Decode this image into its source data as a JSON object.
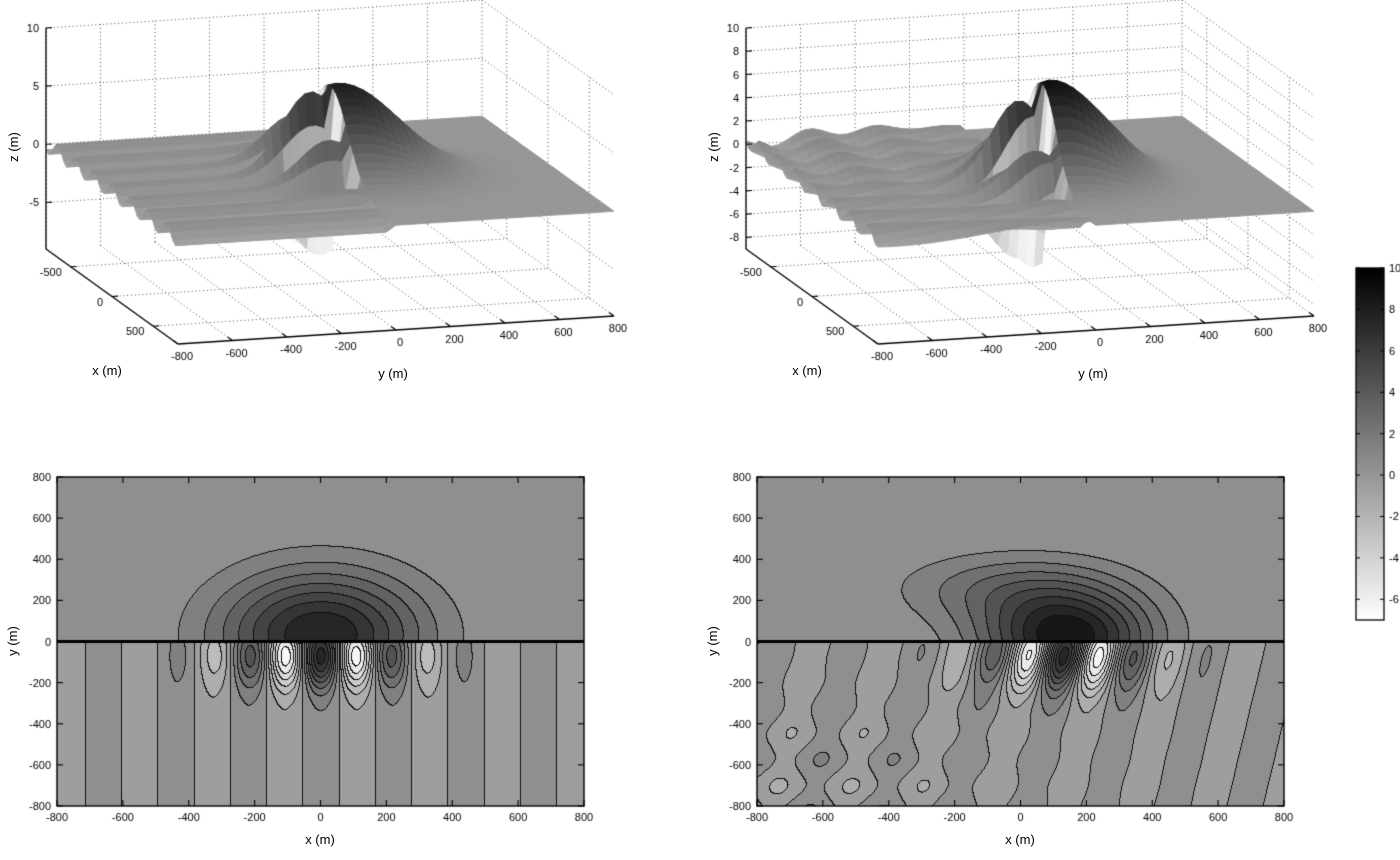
{
  "figure": {
    "background": "#ffffff",
    "description": "Four-panel grayscale wave-field figure: two 3-D surface plots of surface elevation (top row), two filled contour maps with shoreline at y=0 (bottom row), shared vertical colorbar",
    "colormap": {
      "style": "reversed-gray",
      "dark_means": "high z",
      "cmin": -7,
      "cmax": 10,
      "dark_hex": "#000000",
      "light_hex": "#ffffff"
    }
  },
  "chart_data": [
    {
      "id": "surface-top-left",
      "type": "surface3d",
      "xlabel": "x (m)",
      "ylabel": "y (m)",
      "zlabel": "z (m)",
      "xlim": [
        -800,
        800
      ],
      "ylim": [
        -800,
        800
      ],
      "zlim": [
        -9,
        10
      ],
      "xticks": [
        -500,
        0,
        500
      ],
      "yticks": [
        -800,
        -600,
        -400,
        -200,
        0,
        200,
        400,
        600,
        800
      ],
      "zticks": [
        -5,
        0,
        5,
        10
      ],
      "grid": "dotted",
      "peak_z": 8,
      "trough_z": -6.5,
      "field": {
        "split_y": 0,
        "mounds": [
          {
            "A": 8,
            "cx": 0,
            "cy": 35,
            "sx": 300,
            "sy": 300
          }
        ],
        "osc": {
          "base": 0.7,
          "A": 6.8,
          "cx": 0,
          "cy": -70,
          "sx": 280,
          "sy": 150,
          "period": 220,
          "tilt": 0,
          "phase_x": 0
        },
        "osc2": null
      }
    },
    {
      "id": "surface-top-right",
      "type": "surface3d",
      "xlabel": "x (m)",
      "ylabel": "y (m)",
      "zlabel": "z (m)",
      "xlim": [
        -800,
        800
      ],
      "ylim": [
        -800,
        800
      ],
      "zlim": [
        -9,
        10
      ],
      "xticks": [
        -500,
        0,
        500
      ],
      "yticks": [
        -800,
        -600,
        -400,
        -200,
        0,
        200,
        400,
        600,
        800
      ],
      "zticks": [
        -8,
        -6,
        -4,
        -2,
        0,
        2,
        4,
        6,
        8,
        10
      ],
      "grid": "dotted",
      "peak_z": 8.9,
      "trough_z": -6.5,
      "field": {
        "split_y": 0,
        "mounds": [
          {
            "A": 8.7,
            "cx": 140,
            "cy": 20,
            "sx": 250,
            "sy": 230
          },
          {
            "A": 2.6,
            "cx": -40,
            "cy": 260,
            "sx": 320,
            "sy": 170
          }
        ],
        "osc": {
          "base": 0.7,
          "A": 6.8,
          "cx": 140,
          "cy": -70,
          "sx": 250,
          "sy": 160,
          "period": 220,
          "tilt": -0.15,
          "phase_x": 140
        },
        "osc2": {
          "A": 0.55,
          "period": 260,
          "phase": 1.2,
          "xgate": {
            "c": -80,
            "s": 180
          },
          "ygate": {
            "c": -320,
            "s": 140
          }
        }
      }
    },
    {
      "id": "contour-bottom-left",
      "type": "contour-filled",
      "xlabel": "x (m)",
      "ylabel": "y (m)",
      "xlim": [
        -800,
        800
      ],
      "ylim": [
        -800,
        800
      ],
      "xticks": [
        -800,
        -600,
        -400,
        -200,
        0,
        200,
        400,
        600,
        800
      ],
      "yticks": [
        -800,
        -600,
        -400,
        -200,
        0,
        200,
        400,
        600,
        800
      ],
      "level_step": 1,
      "crange": [
        -7,
        10
      ],
      "shoreline_y": 0,
      "field": {
        "split_y": 0,
        "mounds": [
          {
            "A": 8,
            "cx": 0,
            "cy": 35,
            "sx": 300,
            "sy": 300
          }
        ],
        "osc": {
          "base": 0.7,
          "A": 6.8,
          "cx": 0,
          "cy": -70,
          "sx": 280,
          "sy": 150,
          "period": 220,
          "tilt": 0,
          "phase_x": 0
        },
        "osc2": null
      }
    },
    {
      "id": "contour-bottom-right",
      "type": "contour-filled",
      "xlabel": "x (m)",
      "ylabel": "y (m)",
      "xlim": [
        -800,
        800
      ],
      "ylim": [
        -800,
        800
      ],
      "xticks": [
        -800,
        -600,
        -400,
        -200,
        0,
        200,
        400,
        600,
        800
      ],
      "yticks": [
        -800,
        -600,
        -400,
        -200,
        0,
        200,
        400,
        600,
        800
      ],
      "level_step": 1,
      "crange": [
        -7,
        10
      ],
      "shoreline_y": 0,
      "field": {
        "split_y": 0,
        "mounds": [
          {
            "A": 8.7,
            "cx": 140,
            "cy": 20,
            "sx": 250,
            "sy": 230
          },
          {
            "A": 2.6,
            "cx": -40,
            "cy": 260,
            "sx": 320,
            "sy": 170
          }
        ],
        "osc": {
          "base": 0.7,
          "A": 6.8,
          "cx": 140,
          "cy": -70,
          "sx": 250,
          "sy": 160,
          "period": 220,
          "tilt": -0.15,
          "phase_x": 140
        },
        "osc2": {
          "A": 0.55,
          "period": 260,
          "phase": 1.2,
          "xgate": {
            "c": -80,
            "s": 180
          },
          "ygate": {
            "c": -320,
            "s": 140
          }
        }
      }
    },
    {
      "id": "colorbar",
      "type": "colorbar",
      "orientation": "vertical",
      "range": [
        -7,
        10
      ],
      "ticks": [
        10,
        8,
        6,
        4,
        2,
        0,
        -2,
        -4,
        -6
      ]
    }
  ]
}
